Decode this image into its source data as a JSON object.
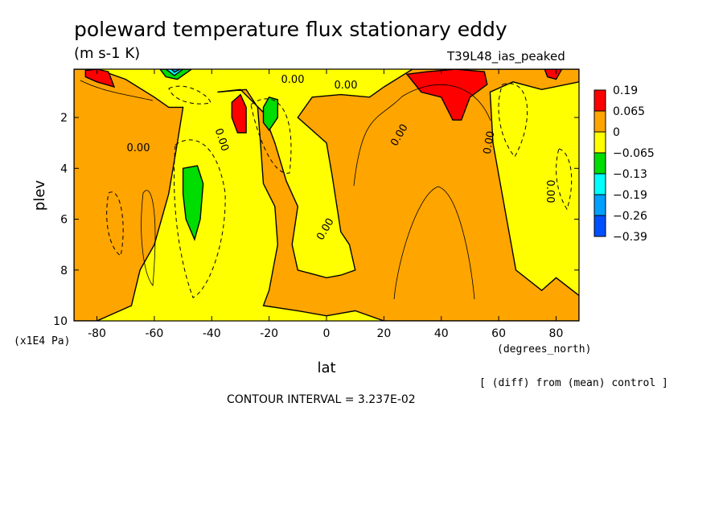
{
  "chart_data": {
    "type": "heatmap",
    "title": "poleward temperature flux stationary eddy",
    "units": "(m s-1 K)",
    "experiment": "T39L48_ias_peaked",
    "xlabel": "lat",
    "xunits": "(degrees_north)",
    "ylabel": "plev",
    "yunits": "(x1E4 Pa)",
    "xlim": [
      -88,
      88
    ],
    "ylim": [
      10,
      0.1
    ],
    "xticks": [
      "-80",
      "-60",
      "-40",
      "-20",
      "0",
      "20",
      "40",
      "60",
      "80"
    ],
    "xtick_values": [
      -80,
      -60,
      -40,
      -20,
      0,
      20,
      40,
      60,
      80
    ],
    "yticks": [
      "2",
      "4",
      "6",
      "8",
      "10"
    ],
    "ytick_values": [
      2,
      4,
      6,
      8,
      10
    ],
    "colorbar": {
      "labels": [
        "0.19",
        "0.065",
        "0",
        "−0.065",
        "−0.13",
        "−0.19",
        "−0.26",
        "−0.39"
      ],
      "colors": [
        "#ff0000",
        "#ffa500",
        "#ffff00",
        "#00dd00",
        "#00ffff",
        "#00a0ff",
        "#0050ff"
      ]
    },
    "contour_labels": [
      "0.00",
      "0.00",
      "0.00",
      "0.00",
      "0.00",
      "0.00",
      "0.00",
      "0.00"
    ],
    "background_level_color": "#ffff00",
    "regions": [
      {
        "level": "0 to 0.065",
        "color": "#ffa500",
        "outline": [
          [
            -88,
            0.1
          ],
          [
            -80,
            0.1
          ],
          [
            -70,
            0.5
          ],
          [
            -60,
            1.2
          ],
          [
            -55,
            1.6
          ],
          [
            -50,
            1.6
          ],
          [
            -52,
            3
          ],
          [
            -55,
            5
          ],
          [
            -60,
            7
          ],
          [
            -65,
            8
          ],
          [
            -68,
            9.4
          ],
          [
            -80,
            10
          ],
          [
            -88,
            10
          ]
        ]
      },
      {
        "level": "0 to 0.065",
        "color": "#ffa500",
        "outline": [
          [
            -38,
            1
          ],
          [
            -28,
            0.9
          ],
          [
            -24,
            1.6
          ],
          [
            -23,
            3
          ],
          [
            -22,
            4.6
          ],
          [
            -18,
            5.5
          ],
          [
            -17,
            7
          ],
          [
            -20,
            8.8
          ],
          [
            -22,
            9.4
          ],
          [
            -10,
            9.6
          ],
          [
            0,
            9.8
          ],
          [
            10,
            9.6
          ],
          [
            20,
            10
          ],
          [
            60,
            10
          ],
          [
            88,
            10
          ],
          [
            88,
            9
          ],
          [
            80,
            8.3
          ],
          [
            75,
            8.8
          ],
          [
            66,
            8
          ],
          [
            62,
            5.5
          ],
          [
            58,
            3
          ],
          [
            57,
            1
          ],
          [
            65,
            0.6
          ],
          [
            75,
            0.9
          ],
          [
            88,
            0.6
          ],
          [
            88,
            0.1
          ],
          [
            30,
            0.1
          ],
          [
            20,
            0.8
          ],
          [
            15,
            1.2
          ],
          [
            5,
            1.1
          ],
          [
            -5,
            1.2
          ],
          [
            -10,
            2
          ],
          [
            0,
            3
          ],
          [
            2,
            4.3
          ],
          [
            5,
            6.5
          ],
          [
            8,
            7
          ],
          [
            10,
            8
          ],
          [
            5,
            8.2
          ],
          [
            0,
            8.3
          ],
          [
            -10,
            8
          ],
          [
            -12,
            7
          ],
          [
            -10,
            5.5
          ],
          [
            -14,
            4.5
          ],
          [
            -18,
            3
          ],
          [
            -22,
            1.8
          ],
          [
            -30,
            0.9
          ],
          [
            -38,
            1
          ]
        ]
      },
      {
        "level": "0.065 to 0.19",
        "color": "#ff0000",
        "outline": [
          [
            -84,
            0.15
          ],
          [
            -80,
            0.1
          ],
          [
            -76,
            0.2
          ],
          [
            -74,
            0.8
          ],
          [
            -80,
            0.6
          ],
          [
            -84,
            0.4
          ]
        ]
      },
      {
        "level": "0.065 to 0.19",
        "color": "#ff0000",
        "outline": [
          [
            -33,
            1.4
          ],
          [
            -30,
            1.1
          ],
          [
            -28,
            1.6
          ],
          [
            -28,
            2.6
          ],
          [
            -31,
            2.6
          ],
          [
            -33,
            2
          ]
        ]
      },
      {
        "level": "0.065 to 0.19",
        "color": "#ff0000",
        "outline": [
          [
            28,
            0.3
          ],
          [
            35,
            0.2
          ],
          [
            45,
            0.1
          ],
          [
            55,
            0.2
          ],
          [
            56,
            0.7
          ],
          [
            50,
            1.2
          ],
          [
            47,
            2.1
          ],
          [
            44,
            2.1
          ],
          [
            40,
            1.2
          ],
          [
            33,
            1
          ]
        ]
      },
      {
        "level": "0.065 to 0.19",
        "color": "#ff0000",
        "outline": [
          [
            76,
            0.1
          ],
          [
            82,
            0.1
          ],
          [
            80,
            0.5
          ],
          [
            77,
            0.4
          ]
        ]
      },
      {
        "level": "-0.13 to -0.065",
        "color": "#00dd00",
        "outline": [
          [
            -50,
            4
          ],
          [
            -45,
            3.9
          ],
          [
            -43,
            4.6
          ],
          [
            -44,
            6
          ],
          [
            -46,
            6.8
          ],
          [
            -49,
            6
          ],
          [
            -50,
            5
          ]
        ]
      },
      {
        "level": "-0.13 to -0.065",
        "color": "#00dd00",
        "outline": [
          [
            -22,
            1.6
          ],
          [
            -20,
            1.2
          ],
          [
            -17,
            1.3
          ],
          [
            -17,
            2
          ],
          [
            -20,
            2.5
          ],
          [
            -22,
            2.2
          ]
        ]
      },
      {
        "level": "-0.13 to -0.065",
        "color": "#00dd00",
        "outline": [
          [
            -58,
            0.1
          ],
          [
            -47,
            0.1
          ],
          [
            -52,
            0.5
          ],
          [
            -56,
            0.4
          ]
        ]
      },
      {
        "level": "-0.19 to -0.13",
        "color": "#00ffff",
        "outline": [
          [
            -56,
            0.1
          ],
          [
            -50,
            0.1
          ],
          [
            -53,
            0.35
          ]
        ]
      },
      {
        "level": "-0.26 to -0.19",
        "color": "#00a0ff",
        "outline": [
          [
            -54,
            0.1
          ],
          [
            -51,
            0.1
          ],
          [
            -53,
            0.22
          ]
        ]
      }
    ]
  }
}
